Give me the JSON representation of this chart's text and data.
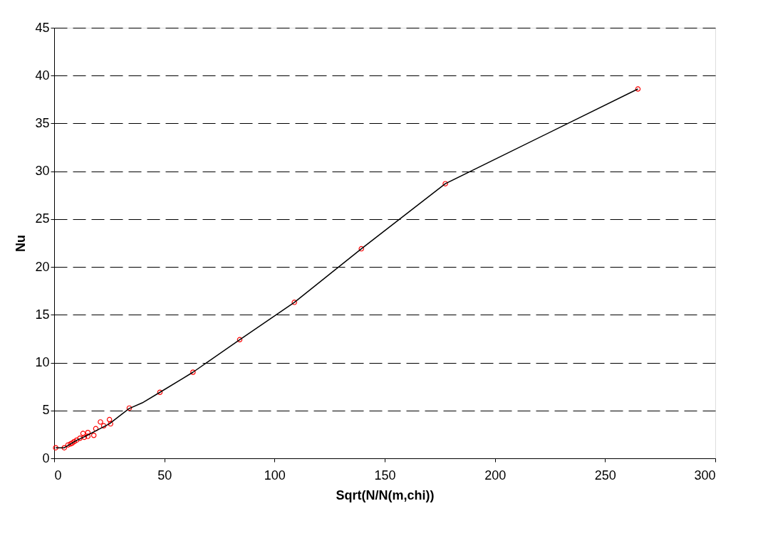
{
  "chart_data": {
    "type": "scatter",
    "xlabel": "Sqrt(N/N(m,chi))",
    "ylabel": "Nu",
    "xlim": [
      0,
      300
    ],
    "xticks": [
      0,
      50,
      100,
      150,
      200,
      250,
      300
    ],
    "ylim": [
      0,
      45
    ],
    "yticks": [
      0,
      5,
      10,
      15,
      20,
      25,
      30,
      35,
      40,
      45
    ],
    "grid": "y",
    "series": [
      {
        "color": "#ff0000",
        "marker": "circle",
        "x": [
          0.7,
          4.6,
          6.3,
          7.4,
          8.2,
          9.1,
          10.2,
          11.7,
          13.1,
          13.7,
          15.3,
          15.3,
          18.0,
          18.9,
          21.0,
          22.5,
          25.1,
          25.6,
          34.1,
          48.0,
          63.0,
          84.2,
          109.0,
          139.4,
          177.5,
          264.9
        ],
        "values": [
          1.1,
          1.1,
          1.4,
          1.5,
          1.6,
          1.75,
          1.9,
          2.1,
          2.6,
          2.2,
          2.7,
          2.3,
          2.4,
          3.1,
          3.8,
          3.4,
          4.05,
          3.6,
          5.25,
          6.9,
          9.0,
          12.4,
          16.3,
          21.9,
          28.7,
          38.6
        ]
      },
      {
        "type": "line",
        "color": "#000000",
        "marker": "none",
        "line_style": "solid",
        "x": [
          0.7,
          4.6,
          10,
          15,
          20,
          25,
          34,
          40,
          48,
          63,
          84.2,
          109,
          139.4,
          177.5,
          264.9
        ],
        "values": [
          1.1,
          1.1,
          1.85,
          2.4,
          3.0,
          3.6,
          5.2,
          5.8,
          6.9,
          9.0,
          12.4,
          16.3,
          21.9,
          28.7,
          38.6
        ]
      }
    ]
  }
}
